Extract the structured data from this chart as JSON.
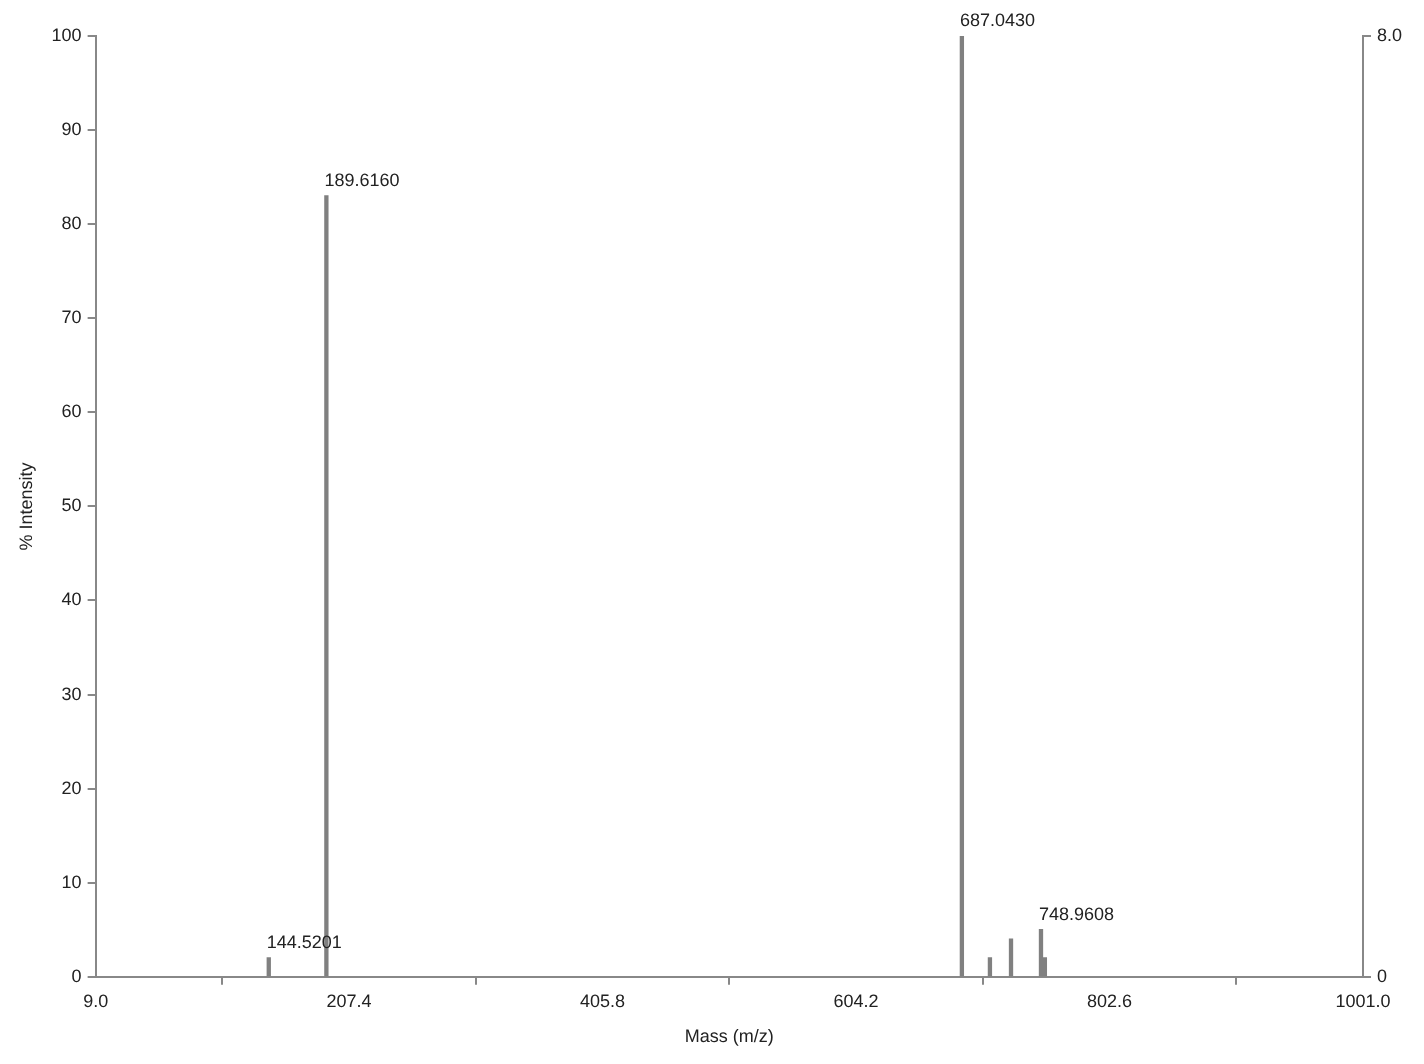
{
  "chart_data": {
    "type": "bar",
    "xlabel": "Mass (m/z)",
    "ylabel": "% Intensity",
    "x": [
      144.5201,
      189.616,
      687.043,
      709,
      725.5,
      748.9608,
      752
    ],
    "values": [
      2,
      83,
      100,
      2,
      4,
      5,
      2
    ],
    "color": "#808080",
    "xlim": [
      9,
      1001
    ],
    "xticks": [
      {
        "value": 9,
        "label": "9.0"
      },
      207.4,
      405.8,
      604.2,
      802.6,
      {
        "value": 1001,
        "label": "1001.0"
      }
    ],
    "ylim": [
      0,
      100
    ],
    "yticks": [
      0,
      10,
      20,
      30,
      40,
      50,
      60,
      70,
      80,
      90,
      100
    ],
    "y2lim": [
      0,
      8
    ],
    "y2ticks": [
      0,
      {
        "value": 8,
        "label": "8.0"
      }
    ],
    "annotations": [
      {
        "text": "144.5201",
        "x": 144.5201,
        "y": 2
      },
      {
        "text": "189.6160",
        "x": 189.616,
        "y": 83
      },
      {
        "text": "687.0430",
        "x": 687.043,
        "y": 100
      },
      {
        "text": "748.9608",
        "x": 748.9608,
        "y": 5
      }
    ]
  }
}
